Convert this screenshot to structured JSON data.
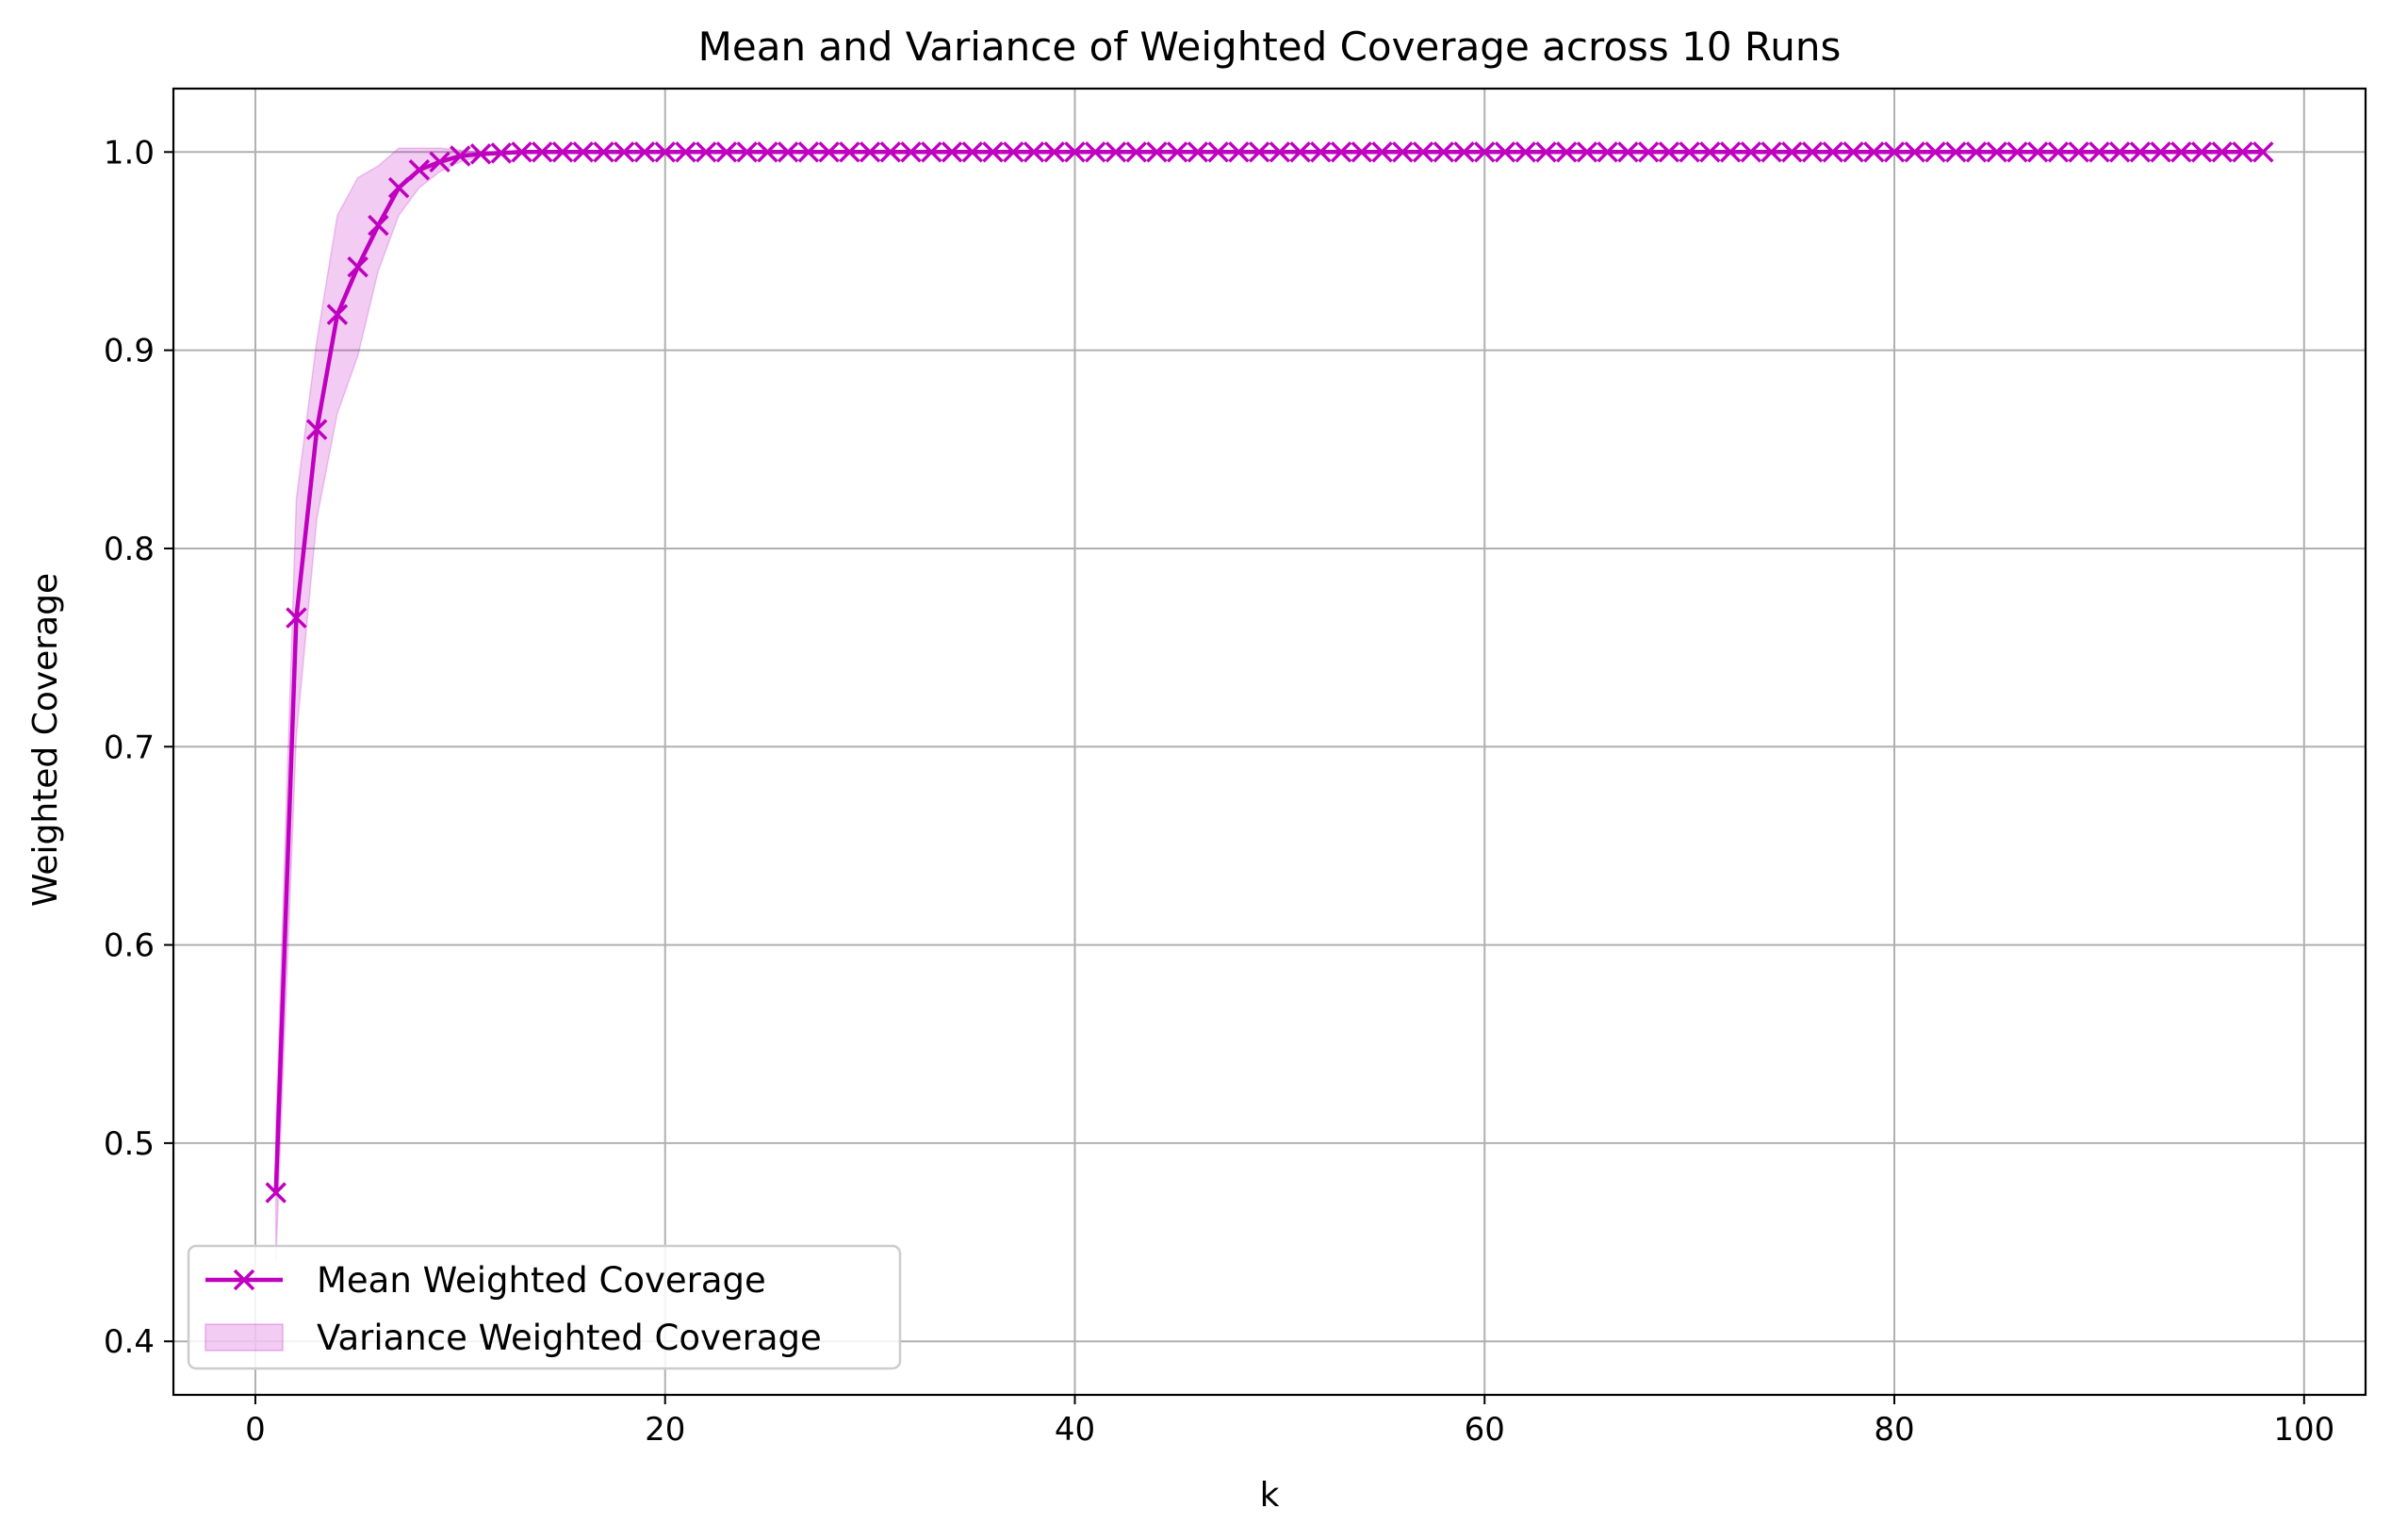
{
  "chart_data": {
    "type": "line",
    "title": "Mean and Variance of Weighted Coverage across 10 Runs",
    "xlabel": "k",
    "ylabel": "Weighted Coverage",
    "xlim": [
      -4,
      103
    ],
    "ylim": [
      0.373,
      1.032
    ],
    "xticks": [
      0,
      20,
      40,
      60,
      80,
      100
    ],
    "xtick_labels": [
      "0",
      "20",
      "40",
      "60",
      "80",
      "100"
    ],
    "yticks": [
      0.4,
      0.5,
      0.6,
      0.7,
      0.8,
      0.9,
      1.0
    ],
    "ytick_labels": [
      "0.4",
      "0.5",
      "0.6",
      "0.7",
      "0.8",
      "0.9",
      "1.0"
    ],
    "grid": true,
    "legend_position": "lower-left",
    "colors": {
      "line": "#bf00bf",
      "band": "#bf00bf",
      "grid": "#b0b0b0"
    },
    "series": [
      {
        "name": "Mean Weighted Coverage",
        "kind": "line",
        "marker": "x",
        "x": [
          1,
          2,
          3,
          4,
          5,
          6,
          7,
          8,
          9,
          10,
          11,
          12,
          13,
          14,
          15,
          16,
          17,
          18,
          19,
          20,
          21,
          22,
          23,
          24,
          25,
          26,
          27,
          28,
          29,
          30,
          31,
          32,
          33,
          34,
          35,
          36,
          37,
          38,
          39,
          40,
          41,
          42,
          43,
          44,
          45,
          46,
          47,
          48,
          49,
          50,
          51,
          52,
          53,
          54,
          55,
          56,
          57,
          58,
          59,
          60,
          61,
          62,
          63,
          64,
          65,
          66,
          67,
          68,
          69,
          70,
          71,
          72,
          73,
          74,
          75,
          76,
          77,
          78,
          79,
          80,
          81,
          82,
          83,
          84,
          85,
          86,
          87,
          88,
          89,
          90,
          91,
          92,
          93,
          94,
          95,
          96,
          97,
          98
        ],
        "y": [
          0.475,
          0.765,
          0.86,
          0.918,
          0.942,
          0.963,
          0.982,
          0.991,
          0.995,
          0.998,
          0.999,
          0.9995,
          1.0,
          1.0,
          1.0,
          1.0,
          1.0,
          1.0,
          1.0,
          1.0,
          1.0,
          1.0,
          1.0,
          1.0,
          1.0,
          1.0,
          1.0,
          1.0,
          1.0,
          1.0,
          1.0,
          1.0,
          1.0,
          1.0,
          1.0,
          1.0,
          1.0,
          1.0,
          1.0,
          1.0,
          1.0,
          1.0,
          1.0,
          1.0,
          1.0,
          1.0,
          1.0,
          1.0,
          1.0,
          1.0,
          1.0,
          1.0,
          1.0,
          1.0,
          1.0,
          1.0,
          1.0,
          1.0,
          1.0,
          1.0,
          1.0,
          1.0,
          1.0,
          1.0,
          1.0,
          1.0,
          1.0,
          1.0,
          1.0,
          1.0,
          1.0,
          1.0,
          1.0,
          1.0,
          1.0,
          1.0,
          1.0,
          1.0,
          1.0,
          1.0,
          1.0,
          1.0,
          1.0,
          1.0,
          1.0,
          1.0,
          1.0,
          1.0,
          1.0,
          1.0,
          1.0,
          1.0,
          1.0,
          1.0,
          1.0,
          1.0,
          1.0,
          1.0
        ]
      },
      {
        "name": "Variance Weighted Coverage",
        "kind": "band",
        "x": [
          1,
          2,
          3,
          4,
          5,
          6,
          7,
          8,
          9,
          10,
          11,
          12,
          13
        ],
        "lower": [
          0.44,
          0.705,
          0.815,
          0.868,
          0.897,
          0.94,
          0.968,
          0.982,
          0.99,
          0.995,
          0.998,
          0.999,
          1.0
        ],
        "upper": [
          0.51,
          0.825,
          0.905,
          0.968,
          0.987,
          0.993,
          1.002,
          1.002,
          1.002,
          1.001,
          1.0,
          1.0,
          1.0
        ]
      }
    ]
  }
}
